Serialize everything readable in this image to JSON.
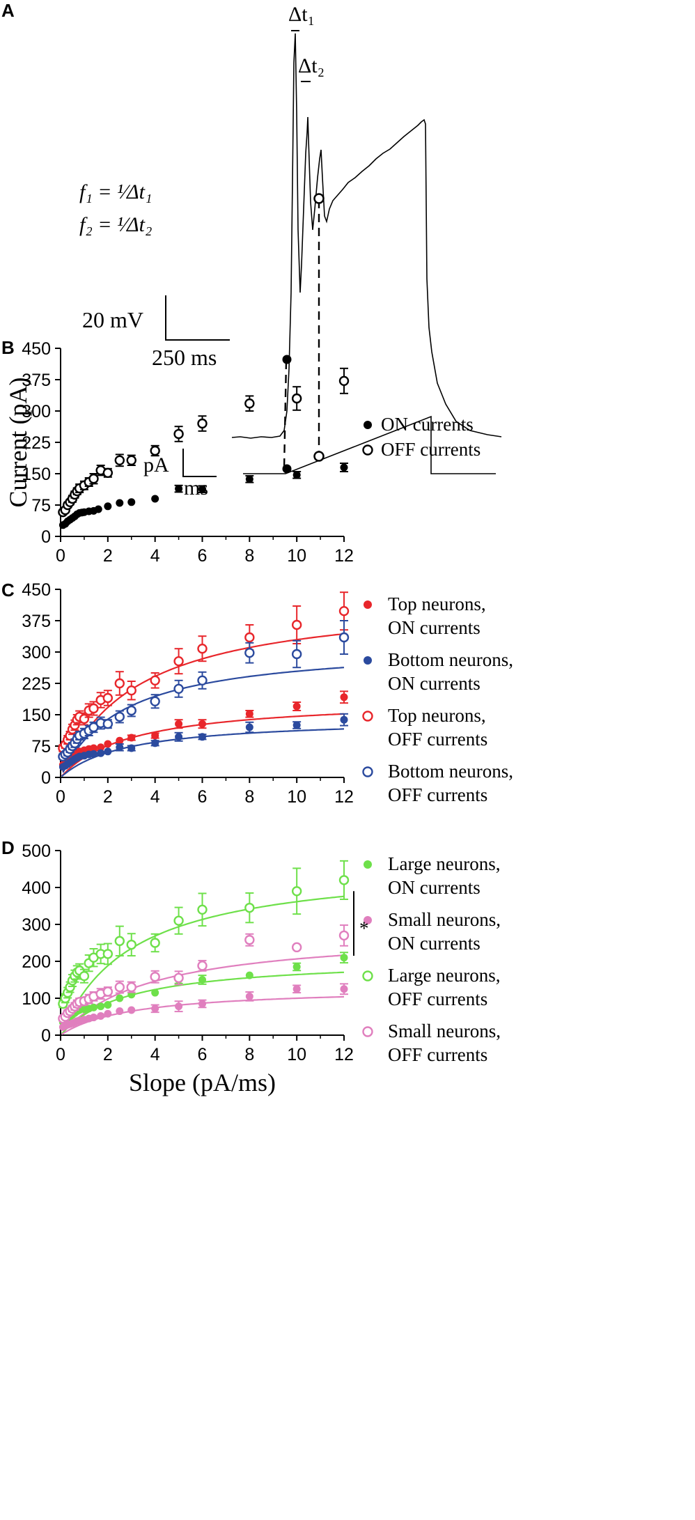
{
  "panel_a": {
    "letter": "A",
    "delta_t1": "Δt₁",
    "delta_t2": "Δt₂",
    "formula1": "f₁ = ¹⁄Δt₁",
    "formula2": "f₂ = ¹⁄Δt₂",
    "scale_voltage": "20 mV",
    "scale_time": "250 ms",
    "scale_current_a": "pA",
    "scale_current_b": "ms"
  },
  "colors": {
    "black": "#000000",
    "red": "#e8262b",
    "blue": "#2b4a9e",
    "green": "#6ee04a",
    "pink": "#e07fbe"
  },
  "chart_data": [
    {
      "panel": "B",
      "type": "scatter",
      "title": "",
      "xlabel": "",
      "ylabel": "Current (pA)",
      "xlim": [
        0,
        12
      ],
      "ylim": [
        0,
        450
      ],
      "xticks": [
        "0",
        "2",
        "4",
        "6",
        "8",
        "10",
        "12"
      ],
      "yticks": [
        "0",
        "75",
        "150",
        "225",
        "300",
        "375",
        "450"
      ],
      "legend_position": "right",
      "series": [
        {
          "name": "ON currents",
          "marker": "filled",
          "color": "#000000",
          "x": [
            0.1,
            0.2,
            0.3,
            0.4,
            0.5,
            0.6,
            0.7,
            0.8,
            0.9,
            1.0,
            1.2,
            1.4,
            1.6,
            2.0,
            2.5,
            3.0,
            4.0,
            5.0,
            6.0,
            8.0,
            10.0,
            12.0
          ],
          "y": [
            27,
            30,
            36,
            40,
            44,
            48,
            53,
            56,
            57,
            58,
            60,
            61,
            65,
            72,
            80,
            82,
            90,
            114,
            113,
            137,
            147,
            165
          ],
          "err": [
            0,
            0,
            0,
            0,
            0,
            0,
            0,
            0,
            0,
            0,
            0,
            0,
            0,
            0,
            0,
            0,
            0,
            8,
            8,
            8,
            8,
            10
          ]
        },
        {
          "name": "OFF currents",
          "marker": "open",
          "color": "#000000",
          "x": [
            0.1,
            0.2,
            0.3,
            0.4,
            0.5,
            0.6,
            0.7,
            0.8,
            1.0,
            1.2,
            1.4,
            1.7,
            2.0,
            2.5,
            3.0,
            4.0,
            5.0,
            6.0,
            8.0,
            10.0,
            12.0
          ],
          "y": [
            58,
            63,
            75,
            82,
            90,
            100,
            108,
            115,
            122,
            130,
            138,
            158,
            152,
            182,
            182,
            205,
            245,
            270,
            318,
            330,
            372
          ],
          "err": [
            5,
            5,
            6,
            6,
            8,
            8,
            8,
            10,
            10,
            10,
            12,
            12,
            10,
            14,
            12,
            12,
            18,
            18,
            18,
            28,
            30
          ]
        }
      ]
    },
    {
      "panel": "C",
      "type": "scatter",
      "title": "",
      "xlabel": "",
      "ylabel": "",
      "xlim": [
        0,
        12
      ],
      "ylim": [
        0,
        450
      ],
      "xticks": [
        "0",
        "2",
        "4",
        "6",
        "8",
        "10",
        "12"
      ],
      "yticks": [
        "0",
        "75",
        "150",
        "225",
        "300",
        "375",
        "450"
      ],
      "legend_position": "right",
      "series": [
        {
          "name": "Top neurons, ON currents",
          "legend_line1": "Top neurons,",
          "legend_line2": "ON currents",
          "marker": "filled",
          "color": "#e8262b",
          "x": [
            0.1,
            0.2,
            0.3,
            0.4,
            0.5,
            0.6,
            0.7,
            0.8,
            1.0,
            1.2,
            1.4,
            1.7,
            2.0,
            2.5,
            3.0,
            4.0,
            5.0,
            6.0,
            8.0,
            10.0,
            12.0
          ],
          "y": [
            30,
            35,
            40,
            45,
            52,
            56,
            58,
            62,
            65,
            68,
            70,
            72,
            80,
            88,
            95,
            100,
            128,
            128,
            152,
            170,
            192
          ],
          "err": [
            0,
            0,
            0,
            0,
            0,
            0,
            0,
            0,
            0,
            0,
            0,
            0,
            0,
            0,
            6,
            6,
            10,
            10,
            8,
            10,
            14
          ]
        },
        {
          "name": "Bottom neurons, ON currents",
          "legend_line1": "Bottom neurons,",
          "legend_line2": "ON currents",
          "marker": "filled",
          "color": "#2b4a9e",
          "x": [
            0.1,
            0.2,
            0.3,
            0.4,
            0.5,
            0.6,
            0.7,
            0.8,
            1.0,
            1.2,
            1.4,
            1.7,
            2.0,
            2.5,
            3.0,
            4.0,
            5.0,
            6.0,
            8.0,
            10.0,
            12.0
          ],
          "y": [
            25,
            28,
            32,
            36,
            40,
            44,
            47,
            50,
            52,
            55,
            56,
            58,
            62,
            72,
            70,
            82,
            97,
            97,
            120,
            125,
            138
          ],
          "err": [
            0,
            0,
            0,
            0,
            0,
            0,
            0,
            0,
            0,
            0,
            0,
            0,
            0,
            8,
            6,
            6,
            10,
            6,
            12,
            8,
            14
          ]
        },
        {
          "name": "Top neurons, OFF currents",
          "legend_line1": "Top neurons,",
          "legend_line2": "OFF currents",
          "marker": "open",
          "color": "#e8262b",
          "x": [
            0.1,
            0.2,
            0.3,
            0.4,
            0.5,
            0.6,
            0.7,
            0.8,
            1.0,
            1.2,
            1.4,
            1.7,
            2.0,
            2.5,
            3.0,
            4.0,
            5.0,
            6.0,
            8.0,
            10.0,
            12.0
          ],
          "y": [
            70,
            78,
            90,
            100,
            115,
            125,
            138,
            145,
            140,
            160,
            165,
            185,
            190,
            225,
            208,
            232,
            278,
            308,
            335,
            365,
            398
          ],
          "err": [
            8,
            8,
            10,
            10,
            12,
            12,
            12,
            14,
            14,
            16,
            16,
            18,
            18,
            28,
            22,
            18,
            30,
            30,
            30,
            45,
            45
          ]
        },
        {
          "name": "Bottom neurons, OFF currents",
          "legend_line1": "Bottom neurons,",
          "legend_line2": "OFF currents",
          "marker": "open",
          "color": "#2b4a9e",
          "x": [
            0.1,
            0.2,
            0.3,
            0.4,
            0.5,
            0.6,
            0.7,
            0.8,
            1.0,
            1.2,
            1.4,
            1.7,
            2.0,
            2.5,
            3.0,
            4.0,
            5.0,
            6.0,
            8.0,
            10.0,
            12.0
          ],
          "y": [
            50,
            55,
            60,
            68,
            75,
            82,
            92,
            100,
            105,
            112,
            120,
            130,
            128,
            145,
            160,
            182,
            212,
            232,
            298,
            295,
            335
          ],
          "err": [
            6,
            6,
            8,
            8,
            8,
            10,
            10,
            10,
            12,
            12,
            12,
            14,
            10,
            14,
            14,
            16,
            20,
            20,
            24,
            32,
            40
          ]
        }
      ],
      "fits": [
        {
          "series": "Top neurons, OFF currents",
          "color": "#e8262b",
          "vmax": 435,
          "k": 3.2,
          "x0": 0.1
        },
        {
          "series": "Bottom neurons, OFF currents",
          "color": "#2b4a9e",
          "vmax": 320,
          "k": 2.6,
          "x0": 0.1
        },
        {
          "series": "Top neurons, ON currents",
          "color": "#e8262b",
          "vmax": 190,
          "k": 3.0,
          "x0": 0.05
        },
        {
          "series": "Bottom neurons, ON currents",
          "color": "#2b4a9e",
          "vmax": 143,
          "k": 2.8,
          "x0": 0.05
        }
      ]
    },
    {
      "panel": "D",
      "type": "scatter",
      "title": "",
      "xlabel": "Slope (pA/ms)",
      "ylabel": "",
      "xlim": [
        0,
        12
      ],
      "ylim": [
        0,
        500
      ],
      "xticks": [
        "0",
        "2",
        "4",
        "6",
        "8",
        "10",
        "12"
      ],
      "yticks": [
        "0",
        "100",
        "200",
        "300",
        "400",
        "500"
      ],
      "legend_position": "right",
      "annotation": "*",
      "series": [
        {
          "name": "Large neurons, ON currents",
          "legend_line1": "Large neurons,",
          "legend_line2": "ON currents",
          "marker": "filled",
          "color": "#6ee04a",
          "x": [
            0.1,
            0.2,
            0.3,
            0.4,
            0.5,
            0.6,
            0.7,
            0.8,
            1.0,
            1.2,
            1.4,
            1.7,
            2.0,
            2.5,
            3.0,
            4.0,
            5.0,
            6.0,
            8.0,
            10.0,
            12.0
          ],
          "y": [
            35,
            40,
            45,
            50,
            55,
            60,
            65,
            68,
            70,
            72,
            75,
            78,
            82,
            100,
            110,
            115,
            150,
            150,
            162,
            185,
            210
          ],
          "err": [
            0,
            0,
            0,
            0,
            0,
            0,
            0,
            0,
            0,
            0,
            0,
            0,
            0,
            0,
            0,
            0,
            10,
            12,
            0,
            10,
            14
          ]
        },
        {
          "name": "Small neurons, ON currents",
          "legend_line1": "Small neurons,",
          "legend_line2": "ON currents",
          "marker": "filled",
          "color": "#e07fbe",
          "x": [
            0.1,
            0.2,
            0.3,
            0.4,
            0.5,
            0.6,
            0.7,
            0.8,
            1.0,
            1.2,
            1.4,
            1.7,
            2.0,
            2.5,
            3.0,
            4.0,
            5.0,
            6.0,
            8.0,
            10.0,
            12.0
          ],
          "y": [
            22,
            25,
            28,
            30,
            32,
            35,
            38,
            40,
            42,
            45,
            48,
            52,
            58,
            65,
            68,
            72,
            78,
            85,
            105,
            125,
            125
          ],
          "err": [
            0,
            0,
            0,
            0,
            0,
            0,
            0,
            0,
            0,
            0,
            0,
            0,
            0,
            0,
            0,
            10,
            14,
            10,
            12,
            10,
            14
          ]
        },
        {
          "name": "Large neurons, OFF currents",
          "legend_line1": "Large neurons,",
          "legend_line2": "OFF currents",
          "marker": "open",
          "color": "#6ee04a",
          "x": [
            0.1,
            0.2,
            0.3,
            0.4,
            0.5,
            0.6,
            0.7,
            0.8,
            1.0,
            1.2,
            1.4,
            1.7,
            2.0,
            2.5,
            3.0,
            4.0,
            5.0,
            6.0,
            8.0,
            10.0,
            12.0
          ],
          "y": [
            85,
            100,
            115,
            130,
            148,
            160,
            170,
            175,
            160,
            195,
            210,
            220,
            220,
            255,
            245,
            250,
            310,
            340,
            345,
            390,
            420
          ],
          "err": [
            10,
            12,
            14,
            14,
            16,
            16,
            18,
            18,
            18,
            22,
            24,
            26,
            28,
            40,
            30,
            24,
            36,
            44,
            40,
            62,
            52
          ]
        },
        {
          "name": "Small neurons, OFF currents",
          "legend_line1": "Small neurons,",
          "legend_line2": "OFF currents",
          "marker": "open",
          "color": "#e07fbe",
          "x": [
            0.1,
            0.2,
            0.3,
            0.4,
            0.5,
            0.6,
            0.7,
            0.8,
            1.0,
            1.2,
            1.4,
            1.7,
            2.0,
            2.5,
            3.0,
            4.0,
            5.0,
            6.0,
            8.0,
            10.0,
            12.0
          ],
          "y": [
            45,
            50,
            60,
            65,
            72,
            78,
            85,
            90,
            92,
            98,
            105,
            112,
            118,
            130,
            130,
            158,
            155,
            188,
            258,
            238,
            270
          ],
          "err": [
            6,
            6,
            8,
            8,
            8,
            10,
            10,
            10,
            10,
            12,
            12,
            14,
            12,
            16,
            14,
            16,
            18,
            14,
            16,
            0,
            28
          ]
        }
      ],
      "fits": [
        {
          "series": "Large neurons, OFF currents",
          "color": "#6ee04a",
          "vmax": 470,
          "k": 3.0,
          "x0": 0.1
        },
        {
          "series": "Small neurons, OFF currents",
          "color": "#e07fbe",
          "vmax": 285,
          "k": 3.8,
          "x0": 0.1
        },
        {
          "series": "Large neurons, ON currents",
          "color": "#6ee04a",
          "vmax": 210,
          "k": 2.8,
          "x0": 0.05
        },
        {
          "series": "Small neurons, ON currents",
          "color": "#e07fbe",
          "vmax": 130,
          "k": 3.0,
          "x0": 0.05
        }
      ]
    }
  ]
}
